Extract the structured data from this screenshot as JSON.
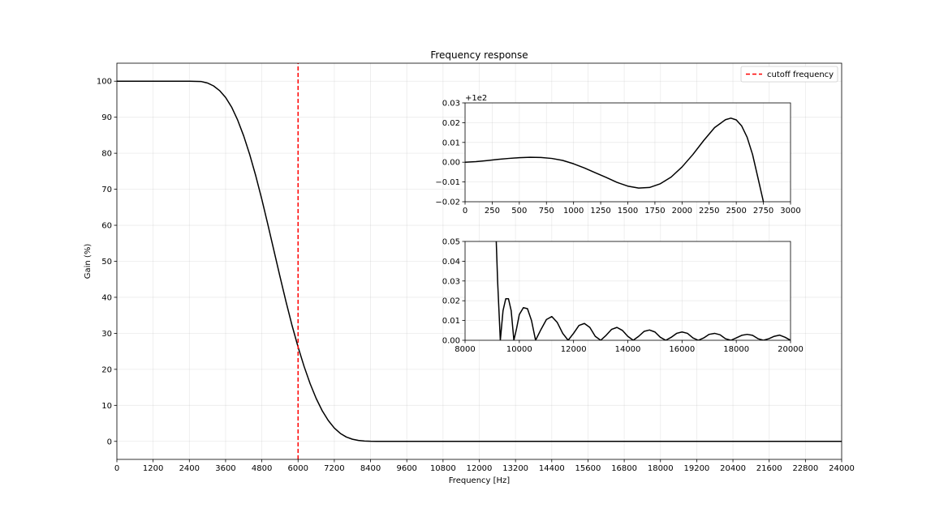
{
  "chart_data": [
    {
      "id": "main",
      "type": "line",
      "title": "Frequency response",
      "xlabel": "Frequency [Hz]",
      "ylabel": "Gain (%)",
      "xlim": [
        0,
        24000
      ],
      "ylim": [
        -5,
        105
      ],
      "xticks": [
        0,
        1200,
        2400,
        3600,
        4800,
        6000,
        7200,
        8400,
        9600,
        10800,
        12000,
        13200,
        14400,
        15600,
        16800,
        18000,
        19200,
        20400,
        21600,
        22800,
        24000
      ],
      "yticks": [
        0,
        10,
        20,
        30,
        40,
        50,
        60,
        70,
        80,
        90,
        100
      ],
      "grid": true,
      "legend_position": "top-right",
      "series": [
        {
          "color": "#000000",
          "style": "solid",
          "x": [
            0,
            1200,
            2400,
            2800,
            3000,
            3200,
            3400,
            3600,
            3800,
            4000,
            4200,
            4400,
            4600,
            4800,
            5000,
            5200,
            5400,
            5600,
            5800,
            6000,
            6200,
            6400,
            6600,
            6800,
            7000,
            7200,
            7400,
            7600,
            7800,
            8000,
            8200,
            8400,
            8600,
            8800,
            9000,
            9200,
            9600,
            12000,
            16000,
            20000,
            24000
          ],
          "y": [
            100,
            100,
            100,
            99.9,
            99.5,
            98.7,
            97.4,
            95.5,
            92.8,
            89.2,
            84.8,
            79.6,
            73.7,
            67.2,
            60.2,
            53.0,
            45.8,
            38.8,
            32.2,
            26.2,
            20.8,
            16.0,
            11.9,
            8.5,
            5.8,
            3.7,
            2.2,
            1.2,
            0.6,
            0.25,
            0.08,
            0.02,
            0.0,
            0.0,
            0.0,
            0.0,
            0.0,
            0.0,
            0.0,
            0.0,
            0.0
          ]
        },
        {
          "name": "cutoff frequency",
          "color": "#ff0000",
          "style": "dashed",
          "x": [
            6000,
            6000
          ],
          "y": [
            -5,
            105
          ]
        }
      ]
    },
    {
      "id": "inset-top",
      "type": "line",
      "xlim": [
        0,
        3000
      ],
      "ylim": [
        -0.02,
        0.03
      ],
      "offset_text": "+1e2",
      "xticks": [
        0,
        250,
        500,
        750,
        1000,
        1250,
        1500,
        1750,
        2000,
        2250,
        2500,
        2750,
        3000
      ],
      "yticks": [
        -0.02,
        -0.01,
        0.0,
        0.01,
        0.02,
        0.03
      ],
      "ytick_labels": [
        "−0.02",
        "−0.01",
        "0.00",
        "0.01",
        "0.02",
        "0.03"
      ],
      "grid": true,
      "series": [
        {
          "color": "#000000",
          "x": [
            0,
            100,
            200,
            300,
            400,
            500,
            600,
            700,
            800,
            900,
            1000,
            1100,
            1200,
            1300,
            1400,
            1500,
            1600,
            1700,
            1800,
            1900,
            2000,
            2100,
            2200,
            2300,
            2400,
            2450,
            2500,
            2550,
            2600,
            2650,
            2700,
            2750
          ],
          "y": [
            0.0,
            0.0003,
            0.0008,
            0.0014,
            0.0019,
            0.0023,
            0.0025,
            0.0024,
            0.0019,
            0.0009,
            -0.0008,
            -0.0029,
            -0.0053,
            -0.0077,
            -0.0102,
            -0.0121,
            -0.0131,
            -0.0128,
            -0.0109,
            -0.0075,
            -0.0024,
            0.0039,
            0.011,
            0.0175,
            0.0215,
            0.0223,
            0.0214,
            0.0183,
            0.0126,
            0.0039,
            -0.008,
            -0.02
          ]
        }
      ]
    },
    {
      "id": "inset-bottom",
      "type": "line",
      "xlim": [
        8000,
        20000
      ],
      "ylim": [
        0,
        0.05
      ],
      "xticks": [
        8000,
        10000,
        12000,
        14000,
        16000,
        18000,
        20000
      ],
      "yticks": [
        0.0,
        0.01,
        0.02,
        0.03,
        0.04,
        0.05
      ],
      "ytick_labels": [
        "0.00",
        "0.01",
        "0.02",
        "0.03",
        "0.04",
        "0.05"
      ],
      "grid": true,
      "series": [
        {
          "color": "#000000",
          "x": [
            9150,
            9200,
            9300,
            9400,
            9500,
            9600,
            9700,
            9800,
            9900,
            10000,
            10150,
            10300,
            10450,
            10600,
            10800,
            11000,
            11200,
            11400,
            11600,
            11800,
            12000,
            12200,
            12400,
            12600,
            12800,
            13000,
            13200,
            13400,
            13600,
            13800,
            14000,
            14200,
            14400,
            14600,
            14800,
            15000,
            15200,
            15400,
            15600,
            15800,
            16000,
            16200,
            16400,
            16600,
            16800,
            17000,
            17200,
            17400,
            17600,
            17800,
            18000,
            18200,
            18400,
            18600,
            18800,
            19000,
            19200,
            19400,
            19600,
            19800,
            20000
          ],
          "y": [
            0.05,
            0.03,
            0.0,
            0.015,
            0.021,
            0.021,
            0.015,
            0.0,
            0.006,
            0.013,
            0.0165,
            0.016,
            0.01,
            0.0,
            0.0055,
            0.0105,
            0.012,
            0.009,
            0.0035,
            0.0,
            0.0035,
            0.0075,
            0.0085,
            0.0065,
            0.002,
            0.0,
            0.0025,
            0.0055,
            0.0065,
            0.005,
            0.002,
            0.0,
            0.002,
            0.0045,
            0.0052,
            0.0042,
            0.0015,
            0.0,
            0.0015,
            0.0035,
            0.0042,
            0.0035,
            0.0012,
            0.0,
            0.0012,
            0.003,
            0.0035,
            0.0028,
            0.0008,
            0.0,
            0.0012,
            0.0025,
            0.003,
            0.0025,
            0.0008,
            0.0,
            0.0008,
            0.002,
            0.0026,
            0.0015,
            0.0
          ]
        }
      ]
    }
  ]
}
